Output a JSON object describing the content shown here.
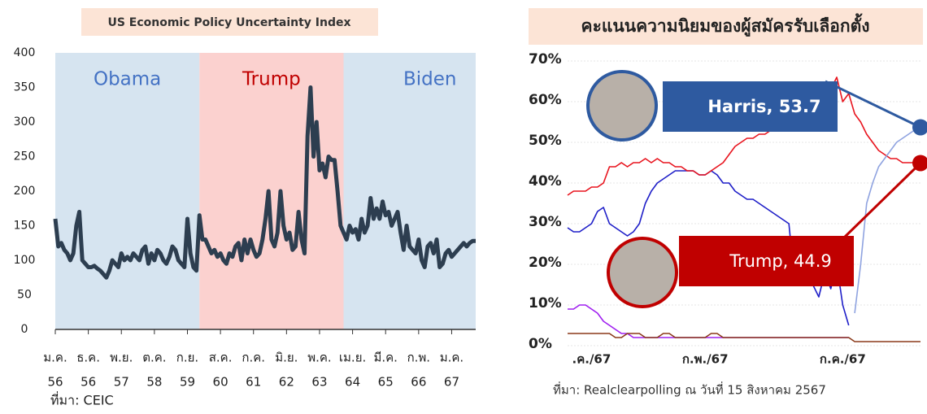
{
  "chart_data": [
    {
      "type": "line",
      "title": "US Economic Policy Uncertainty Index",
      "source": "ที่มา: CEIC",
      "regions": [
        {
          "label": "Obama",
          "from": 0,
          "to": 48,
          "color": "#d6e4f0",
          "text_color": "#4472c4"
        },
        {
          "label": "Trump",
          "from": 48,
          "to": 96,
          "color": "#fbd1cf",
          "text_color": "#c00000"
        },
        {
          "label": "Biden",
          "from": 96,
          "to": 140,
          "color": "#d6e4f0",
          "text_color": "#4472c4"
        }
      ],
      "xlim": [
        0,
        140
      ],
      "ylim": [
        0,
        400
      ],
      "yticks": [
        0,
        50,
        100,
        150,
        200,
        250,
        300,
        350,
        400
      ],
      "xticks": [
        {
          "value": 0,
          "month": "ม.ค.",
          "year": "56"
        },
        {
          "value": 11,
          "month": "ธ.ค.",
          "year": "56"
        },
        {
          "value": 22,
          "month": "พ.ย.",
          "year": "57"
        },
        {
          "value": 33,
          "month": "ต.ค.",
          "year": "58"
        },
        {
          "value": 44,
          "month": "ก.ย.",
          "year": "59"
        },
        {
          "value": 55,
          "month": "ส.ค.",
          "year": "60"
        },
        {
          "value": 66,
          "month": "ก.ค.",
          "year": "61"
        },
        {
          "value": 77,
          "month": "มิ.ย.",
          "year": "62"
        },
        {
          "value": 88,
          "month": "พ.ค.",
          "year": "63"
        },
        {
          "value": 99,
          "month": "เม.ย.",
          "year": "64"
        },
        {
          "value": 110,
          "month": "มี.ค.",
          "year": "65"
        },
        {
          "value": 121,
          "month": "ก.พ.",
          "year": "66"
        },
        {
          "value": 132,
          "month": "ม.ค.",
          "year": "67"
        }
      ],
      "series": [
        {
          "color": "#2d3e50",
          "values": [
            160,
            120,
            125,
            115,
            110,
            100,
            110,
            150,
            170,
            100,
            95,
            90,
            90,
            92,
            88,
            85,
            80,
            75,
            85,
            100,
            95,
            90,
            110,
            100,
            105,
            100,
            110,
            105,
            100,
            115,
            120,
            95,
            110,
            100,
            115,
            110,
            100,
            95,
            105,
            120,
            115,
            100,
            95,
            90,
            160,
            110,
            90,
            85,
            165,
            130,
            130,
            120,
            110,
            115,
            105,
            110,
            100,
            95,
            110,
            105,
            120,
            125,
            100,
            130,
            110,
            130,
            115,
            105,
            110,
            130,
            160,
            200,
            130,
            120,
            140,
            200,
            150,
            130,
            140,
            115,
            120,
            170,
            130,
            110,
            280,
            350,
            250,
            300,
            230,
            240,
            220,
            250,
            245,
            245,
            200,
            150,
            140,
            130,
            150,
            140,
            145,
            130,
            160,
            140,
            150,
            190,
            160,
            175,
            160,
            185,
            165,
            170,
            150,
            160,
            170,
            140,
            115,
            150,
            120,
            115,
            110,
            130,
            100,
            90,
            120,
            125,
            110,
            130,
            90,
            95,
            110,
            115,
            105,
            110,
            115,
            120,
            125,
            120,
            125,
            128,
            128
          ]
        }
      ]
    },
    {
      "type": "line",
      "title": "คะแนนความนิยมของผู้สมัครรับเลือกตั้ง",
      "source": "ที่มา: Realclearpolling ณ วันที่ 15 สิงหาคม 2567",
      "xlim": [
        0,
        59
      ],
      "ylim": [
        0,
        70
      ],
      "yticks": [
        {
          "value": 0,
          "label": "0%"
        },
        {
          "value": 10,
          "label": "10%"
        },
        {
          "value": 20,
          "label": "20%"
        },
        {
          "value": 30,
          "label": "30%"
        },
        {
          "value": 40,
          "label": "40%"
        },
        {
          "value": 50,
          "label": "50%"
        },
        {
          "value": 60,
          "label": "60%"
        },
        {
          "value": 70,
          "label": "70%"
        }
      ],
      "xticks": [
        {
          "value": 4,
          "label": ".ค./67"
        },
        {
          "value": 23,
          "label": "ก.พ./67"
        },
        {
          "value": 46,
          "label": "ก.ค./67"
        }
      ],
      "series": [
        {
          "color": "#a020f0",
          "values": [
            9,
            9,
            10,
            10,
            9,
            8,
            6,
            5,
            4,
            3,
            3,
            2,
            2,
            2,
            2,
            2,
            2,
            2,
            2,
            2,
            2,
            2,
            2,
            2,
            2,
            2,
            2,
            2,
            2,
            2,
            2,
            2,
            2,
            2,
            2,
            2,
            2,
            2,
            2,
            2,
            2,
            2,
            2,
            2,
            2,
            2,
            2,
            2,
            null,
            null,
            null,
            null,
            null,
            null,
            null,
            null,
            null,
            null,
            null,
            null
          ]
        },
        {
          "color": "#8b3a1a",
          "values": [
            3,
            3,
            3,
            3,
            3,
            3,
            3,
            3,
            2,
            2,
            3,
            3,
            3,
            2,
            2,
            2,
            3,
            3,
            2,
            2,
            2,
            2,
            2,
            2,
            3,
            3,
            2,
            2,
            2,
            2,
            2,
            2,
            2,
            2,
            2,
            2,
            2,
            2,
            2,
            2,
            2,
            2,
            2,
            2,
            2,
            2,
            2,
            2,
            1,
            1,
            1,
            1,
            1,
            1,
            1,
            1,
            1,
            1,
            1,
            1
          ]
        },
        {
          "color": "#1f1fc8",
          "values": [
            29,
            28,
            28,
            29,
            30,
            33,
            34,
            30,
            29,
            28,
            27,
            28,
            30,
            35,
            38,
            40,
            41,
            42,
            43,
            43,
            43,
            43,
            42,
            42,
            43,
            42,
            40,
            40,
            38,
            37,
            36,
            36,
            35,
            34,
            33,
            32,
            31,
            30,
            15,
            20,
            18,
            15,
            12,
            18,
            14,
            20,
            10,
            5,
            null,
            null,
            null,
            null,
            null,
            null,
            null,
            null,
            null,
            null,
            null,
            null
          ]
        },
        {
          "color": "#e8141e",
          "values": [
            37,
            38,
            38,
            38,
            39,
            39,
            40,
            44,
            44,
            45,
            44,
            45,
            45,
            46,
            45,
            46,
            45,
            45,
            44,
            44,
            43,
            43,
            42,
            42,
            43,
            44,
            45,
            47,
            49,
            50,
            51,
            51,
            52,
            52,
            53,
            53,
            54,
            54,
            55,
            57,
            59,
            60,
            61,
            62,
            63,
            66,
            60,
            62,
            57,
            55,
            52,
            50,
            48,
            47,
            46,
            46,
            45,
            45,
            45,
            44.9
          ]
        },
        {
          "color": "#8fa3e0",
          "values": [
            null,
            null,
            null,
            null,
            null,
            null,
            null,
            null,
            null,
            null,
            null,
            null,
            null,
            null,
            null,
            null,
            null,
            null,
            null,
            null,
            null,
            null,
            null,
            null,
            null,
            null,
            null,
            null,
            null,
            null,
            null,
            null,
            null,
            null,
            null,
            null,
            null,
            null,
            null,
            null,
            null,
            null,
            null,
            null,
            null,
            null,
            null,
            null,
            8,
            20,
            35,
            40,
            44,
            46,
            48,
            50,
            51,
            52,
            53,
            53.7
          ]
        }
      ],
      "annotations": [
        {
          "text": "Harris, 53.7",
          "series": 4,
          "color": "#2e5aa0"
        },
        {
          "text": "Trump, 44.9",
          "series": 3,
          "color": "#c00000"
        }
      ]
    }
  ]
}
